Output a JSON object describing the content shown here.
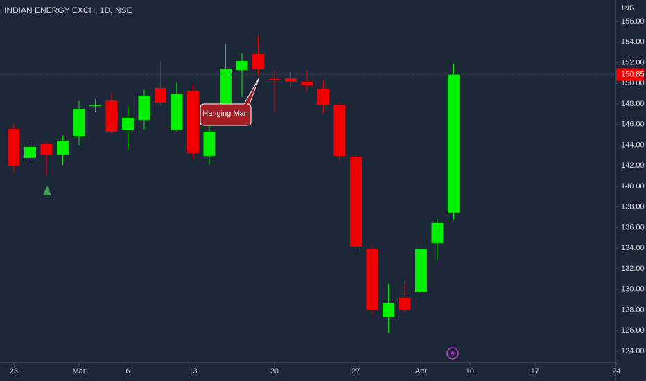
{
  "chart_data": {
    "type": "candlestick",
    "title": "INDIAN ENERGY EXCH, 1D, NSE",
    "y_axis_label": "INR",
    "up_color": "#00f000",
    "down_color": "#f20000",
    "open": [
      145.58,
      142.76,
      144.1,
      143.03,
      144.84,
      147.87,
      148.34,
      145.45,
      146.45,
      149.55,
      145.45,
      149.28,
      142.96,
      147.33,
      151.29,
      152.84,
      150.42,
      150.49,
      150.15,
      149.48,
      147.87,
      142.89,
      133.88,
      127.29,
      129.18,
      129.71,
      134.49,
      137.45
    ],
    "high": [
      146.12,
      144.3,
      144.37,
      144.97,
      148.27,
      148.47,
      149.08,
      147.8,
      149.34,
      152.17,
      150.15,
      149.88,
      146.12,
      153.78,
      152.91,
      154.59,
      151.23,
      151.09,
      151.29,
      150.29,
      148.2,
      143.03,
      134.35,
      130.52,
      130.79,
      134.49,
      136.84,
      151.9
    ],
    "low": [
      141.34,
      142.42,
      141.0,
      142.08,
      143.97,
      147.19,
      145.11,
      143.63,
      145.51,
      147.87,
      145.31,
      142.62,
      142.08,
      146.79,
      148.67,
      150.69,
      147.19,
      149.55,
      149.21,
      147.13,
      142.49,
      133.55,
      127.5,
      125.82,
      127.83,
      129.51,
      132.81,
      136.77
    ],
    "close": [
      142.02,
      143.83,
      143.03,
      144.44,
      147.53,
      147.87,
      145.31,
      146.66,
      148.81,
      148.13,
      148.94,
      143.23,
      145.31,
      151.43,
      152.17,
      151.36,
      150.35,
      150.15,
      149.82,
      147.93,
      142.96,
      134.15,
      127.97,
      128.64,
      127.97,
      133.88,
      136.44,
      150.85
    ],
    "last_price": 150.85,
    "annotation": "Hanging Man",
    "ylim": [
      122.92,
      158.08
    ],
    "yticks": [
      {
        "value": 124,
        "label": "124.00"
      },
      {
        "value": 126,
        "label": "126.00"
      },
      {
        "value": 128,
        "label": "128.00"
      },
      {
        "value": 130,
        "label": "130.00"
      },
      {
        "value": 132,
        "label": "132.00"
      },
      {
        "value": 134,
        "label": "134.00"
      },
      {
        "value": 136,
        "label": "136.00"
      },
      {
        "value": 138,
        "label": "138.00"
      },
      {
        "value": 140,
        "label": "140.00"
      },
      {
        "value": 142,
        "label": "142.00"
      },
      {
        "value": 144,
        "label": "144.00"
      },
      {
        "value": 146,
        "label": "146.00"
      },
      {
        "value": 148,
        "label": "148.00"
      },
      {
        "value": 150,
        "label": "150.00"
      },
      {
        "value": 152,
        "label": "152.00"
      },
      {
        "value": 154,
        "label": "154.00"
      },
      {
        "value": 156,
        "label": "156.00"
      }
    ],
    "xlim": [
      -0.85,
      36.94
    ],
    "xticks": [
      {
        "value": 0,
        "label": "23"
      },
      {
        "value": 4,
        "label": "Mar"
      },
      {
        "value": 7,
        "label": "6"
      },
      {
        "value": 11,
        "label": "13"
      },
      {
        "value": 16,
        "label": "20"
      },
      {
        "value": 21,
        "label": "27"
      },
      {
        "value": 25,
        "label": "Apr"
      },
      {
        "value": 28,
        "label": "10"
      },
      {
        "value": 32,
        "label": "17"
      },
      {
        "value": 37,
        "label": "24"
      }
    ]
  }
}
